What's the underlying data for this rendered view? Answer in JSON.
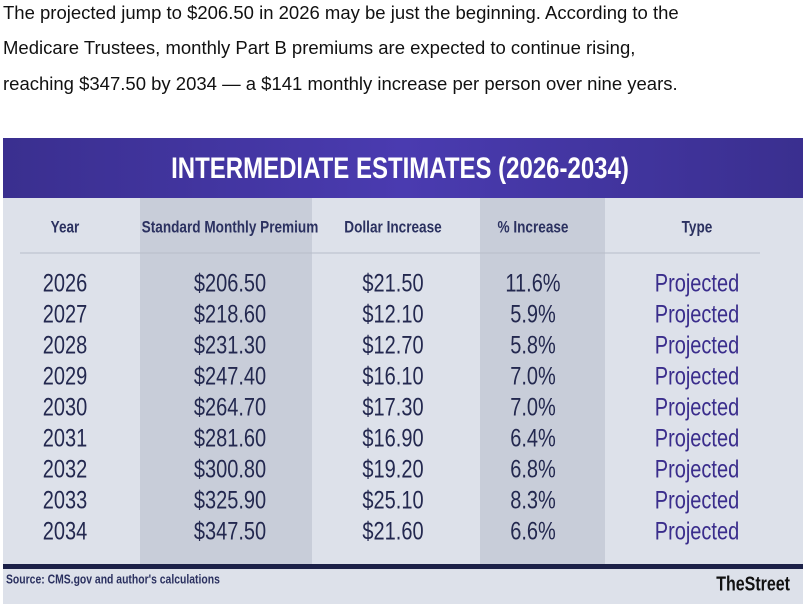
{
  "paragraph": {
    "lines": [
      "The projected jump to $206.50 in 2026 may be just the beginning. According to the",
      "Medicare Trustees, monthly Part B premiums are expected to continue rising,",
      "reaching $347.50 by 2034 — a $141 monthly increase per person over nine years."
    ]
  },
  "table": {
    "title": "INTERMEDIATE ESTIMATES (2026-2034)",
    "headers": [
      "Year",
      "Standard Monthly Premium",
      "Dollar Increase",
      "% Increase",
      "Type"
    ],
    "rows": [
      [
        "2026",
        "$206.50",
        "$21.50",
        "11.6%",
        "Projected"
      ],
      [
        "2027",
        "$218.60",
        "$12.10",
        "5.9%",
        "Projected"
      ],
      [
        "2028",
        "$231.30",
        "$12.70",
        "5.8%",
        "Projected"
      ],
      [
        "2029",
        "$247.40",
        "$16.10",
        "7.0%",
        "Projected"
      ],
      [
        "2030",
        "$264.70",
        "$17.30",
        "7.0%",
        "Projected"
      ],
      [
        "2031",
        "$281.60",
        "$16.90",
        "6.4%",
        "Projected"
      ],
      [
        "2032",
        "$300.80",
        "$19.20",
        "6.8%",
        "Projected"
      ],
      [
        "2033",
        "$325.90",
        "$25.10",
        "8.3%",
        "Projected"
      ],
      [
        "2034",
        "$347.50",
        "$21.60",
        "6.6%",
        "Projected"
      ]
    ],
    "source": "Source: CMS.gov and author's calculations",
    "brand": "TheStreet"
  }
}
